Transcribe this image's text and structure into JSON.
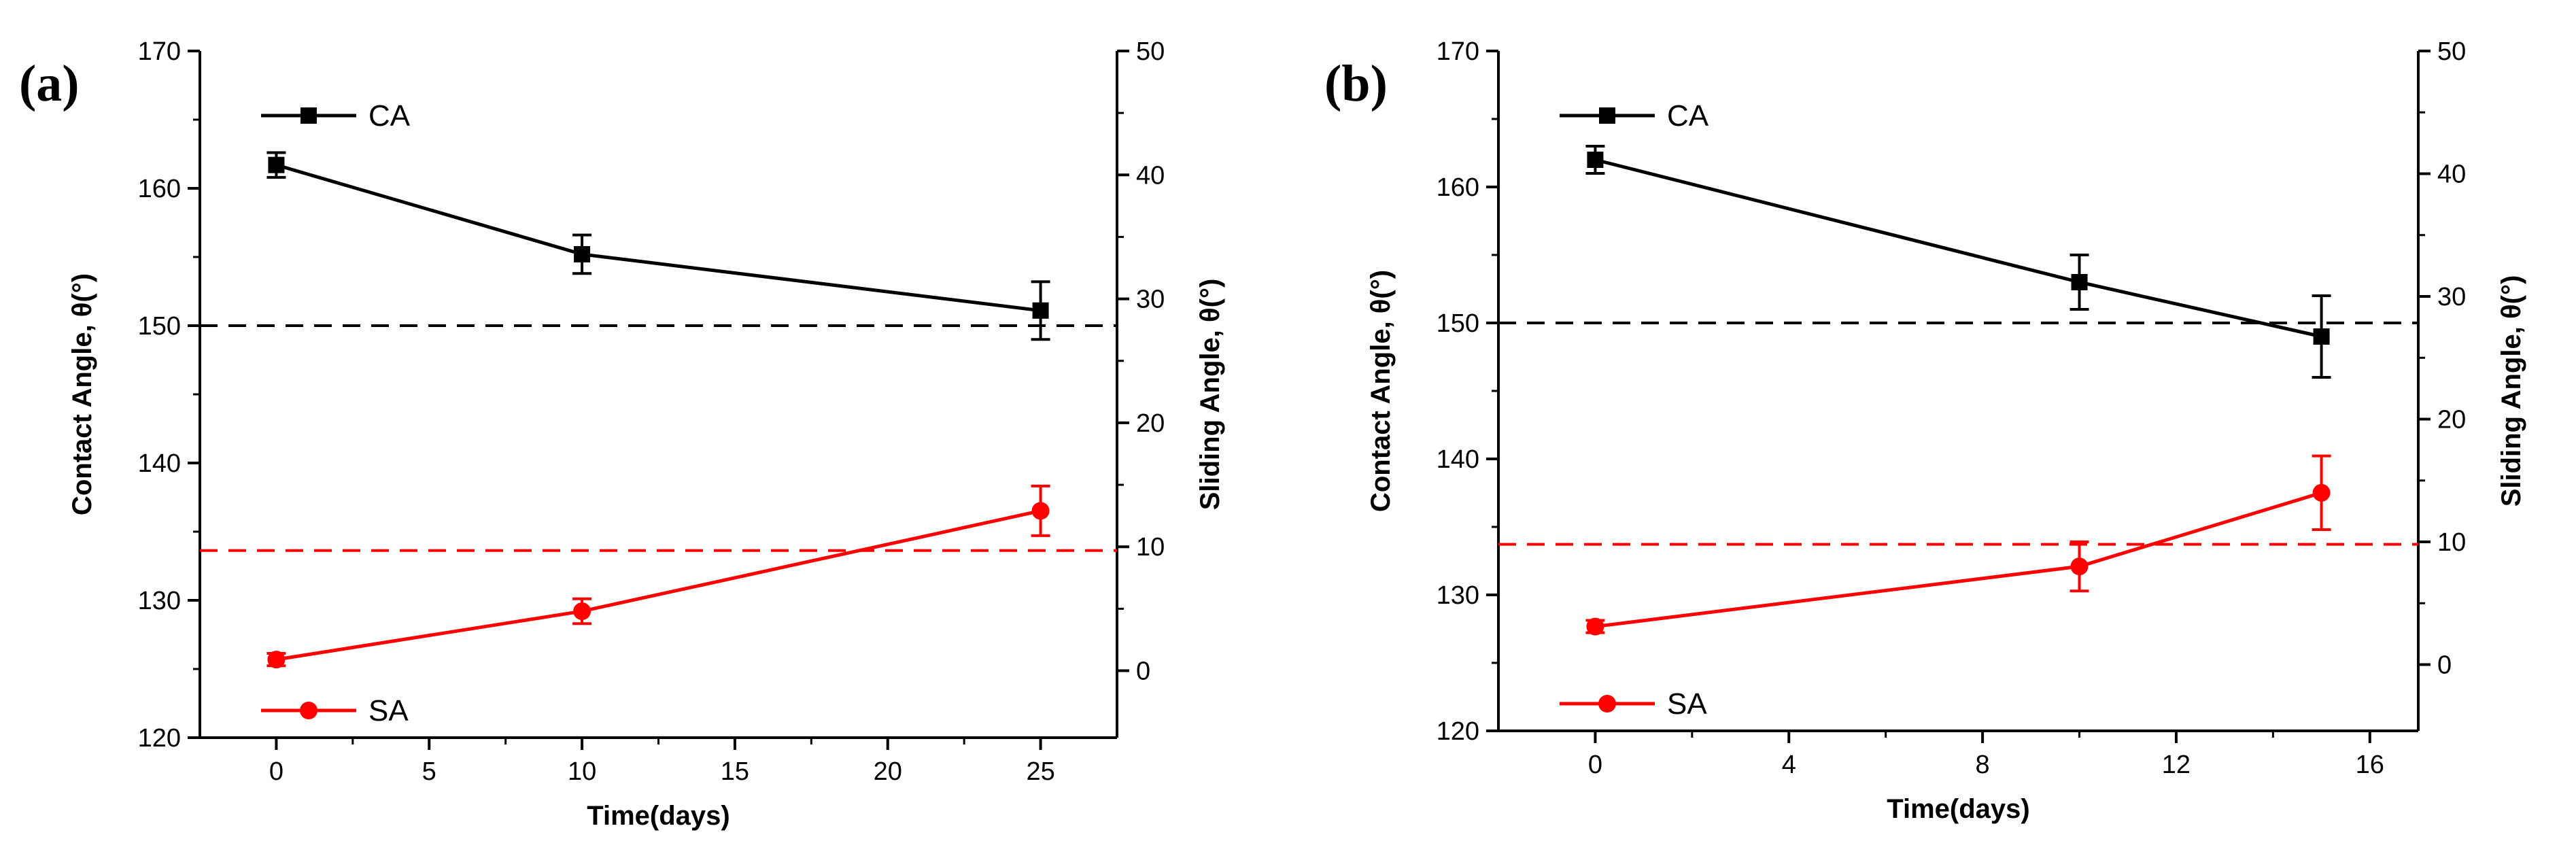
{
  "chart_data": [
    {
      "type": "line",
      "panel_label": "(a)",
      "xlabel": "Time(days)",
      "ylabel_left": "Contact Angle, θ(°)",
      "ylabel_right": "Sliding Angle, θ(°)",
      "xlim": [
        -2.5,
        27.5
      ],
      "ylim_left": [
        120,
        170
      ],
      "ylim_right": [
        -5.4,
        50
      ],
      "x_ticks": [
        0,
        5,
        10,
        15,
        20,
        25
      ],
      "y_ticks_left": [
        120,
        130,
        140,
        150,
        160,
        170
      ],
      "y_ticks_right": [
        0,
        10,
        20,
        30,
        40,
        50
      ],
      "grid": false,
      "series": [
        {
          "name": "CA",
          "axis": "left",
          "color": "#000000",
          "marker": "square",
          "x": [
            0,
            10,
            25
          ],
          "y": [
            161.7,
            155.2,
            151.1
          ],
          "err": [
            0.9,
            1.4,
            2.1
          ]
        },
        {
          "name": "SA",
          "axis": "right",
          "color": "#ff0000",
          "marker": "circle",
          "x": [
            0,
            10,
            25
          ],
          "y": [
            0.9,
            4.8,
            12.9
          ],
          "err": [
            0.5,
            1.0,
            2.0
          ]
        }
      ],
      "reference_lines": [
        {
          "axis": "left",
          "y": 150,
          "color": "#000000",
          "style": "dashed"
        },
        {
          "axis": "right",
          "y": 9.7,
          "color": "#ff0000",
          "style": "dashed"
        }
      ]
    },
    {
      "type": "line",
      "panel_label": "(b)",
      "xlabel": "Time(days)",
      "ylabel_left": "Contact Angle, θ(°)",
      "ylabel_right": "Sliding Angle, θ(°)",
      "xlim": [
        -2,
        17
      ],
      "ylim_left": [
        120,
        170
      ],
      "ylim_right": [
        -5.4,
        50
      ],
      "x_ticks": [
        0,
        4,
        8,
        12,
        16
      ],
      "y_ticks_left": [
        120,
        130,
        140,
        150,
        160,
        170
      ],
      "y_ticks_right": [
        0,
        10,
        20,
        30,
        40,
        50
      ],
      "grid": false,
      "series": [
        {
          "name": "CA",
          "axis": "left",
          "color": "#000000",
          "marker": "square",
          "x": [
            0,
            10,
            15
          ],
          "y": [
            162.0,
            153.0,
            149.0
          ],
          "err": [
            1.0,
            2.0,
            3.0
          ]
        },
        {
          "name": "SA",
          "axis": "right",
          "color": "#ff0000",
          "marker": "circle",
          "x": [
            0,
            10,
            15
          ],
          "y": [
            3.1,
            8.0,
            14.0
          ],
          "err": [
            0.5,
            2.0,
            3.0
          ]
        }
      ],
      "reference_lines": [
        {
          "axis": "left",
          "y": 150,
          "color": "#000000",
          "style": "dashed"
        },
        {
          "axis": "right",
          "y": 9.8,
          "color": "#ff0000",
          "style": "dashed"
        }
      ]
    }
  ]
}
